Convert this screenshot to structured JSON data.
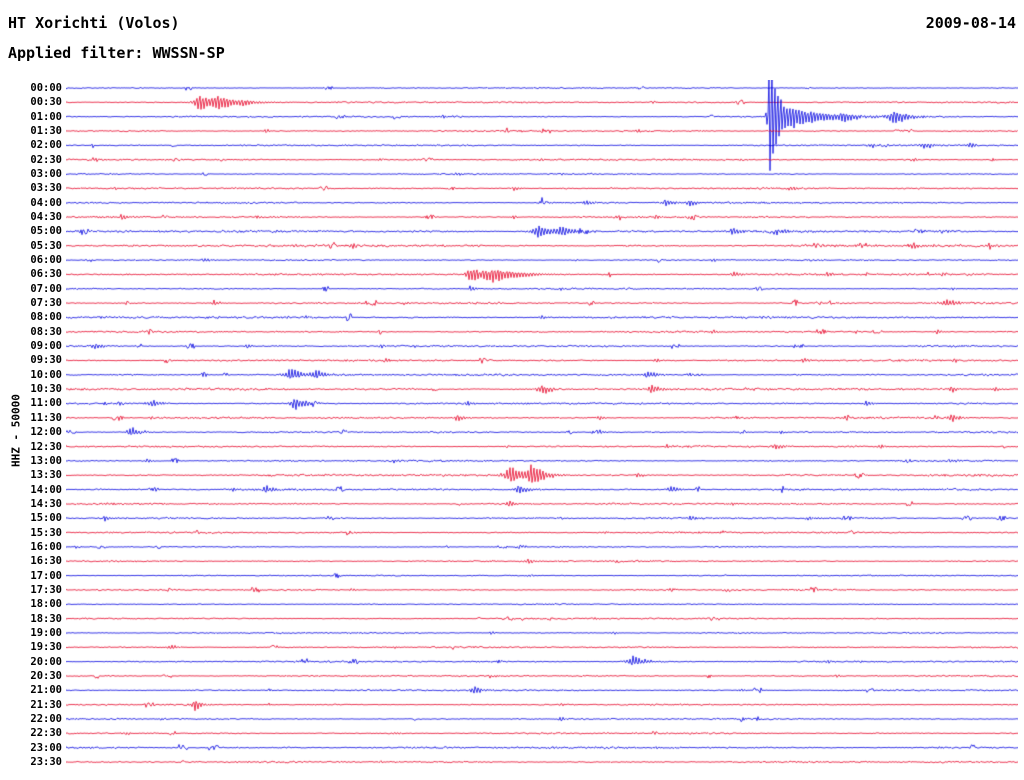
{
  "header": {
    "station": "HT Xorichti (Volos)",
    "date": "2009-08-14",
    "filter": "Applied filter: WWSSN-SP"
  },
  "y_axis_label": "HHZ - 50000",
  "palette": {
    "blue": "#0000e0",
    "red": "#e60026",
    "background": "#ffffff",
    "text": "#000000"
  },
  "chart_data": {
    "type": "line",
    "title": "Helicorder drum record, station HT Xorichti (Volos), channel HHZ, gain 50000, filter WWSSN-SP, 2009-08-14",
    "minutes_per_row": 30,
    "row_colors_alternate": [
      "blue",
      "red"
    ],
    "rows": [
      {
        "label": "00:00",
        "color": "blue",
        "noise": 0.55,
        "events": []
      },
      {
        "label": "00:30",
        "color": "red",
        "noise": 0.75,
        "events": [
          [
            0.14,
            11,
            4,
            16
          ],
          [
            0.158,
            6,
            2,
            26
          ],
          [
            0.185,
            3,
            2,
            6
          ]
        ]
      },
      {
        "label": "01:00",
        "color": "blue",
        "noise": 0.65,
        "events": [
          [
            0.395,
            3,
            1,
            4
          ],
          [
            0.7385,
            85,
            1,
            5
          ],
          [
            0.742,
            20,
            2,
            38
          ],
          [
            0.815,
            4,
            2,
            8
          ],
          [
            0.87,
            9,
            4,
            12
          ]
        ]
      },
      {
        "label": "01:30",
        "color": "red",
        "noise": 0.7,
        "events": [
          [
            0.21,
            2.5,
            2,
            4
          ],
          [
            0.6,
            2.5,
            2,
            4
          ],
          [
            0.74,
            2,
            2,
            4
          ]
        ]
      },
      {
        "label": "02:00",
        "color": "blue",
        "noise": 0.7,
        "events": [
          [
            0.845,
            3,
            2,
            6
          ],
          [
            0.9,
            4.5,
            3,
            9
          ],
          [
            0.95,
            3,
            2,
            5
          ]
        ]
      },
      {
        "label": "02:30",
        "color": "red",
        "noise": 0.8,
        "events": [
          [
            0.028,
            3.5,
            2,
            5
          ],
          [
            0.33,
            2.5,
            2,
            4
          ],
          [
            0.5,
            2,
            2,
            4
          ],
          [
            0.89,
            2.5,
            2,
            4
          ]
        ]
      },
      {
        "label": "03:00",
        "color": "blue",
        "noise": 0.6,
        "events": [
          [
            0.41,
            2.5,
            2,
            4
          ],
          [
            0.52,
            2,
            2,
            4
          ]
        ]
      },
      {
        "label": "03:30",
        "color": "red",
        "noise": 0.75,
        "events": [
          [
            0.47,
            3,
            2,
            5
          ],
          [
            0.76,
            3,
            2,
            5
          ]
        ]
      },
      {
        "label": "04:00",
        "color": "blue",
        "noise": 0.75,
        "events": [
          [
            0.5,
            3.5,
            2,
            6
          ],
          [
            0.545,
            4,
            2,
            8
          ],
          [
            0.63,
            4.5,
            3,
            9
          ],
          [
            0.655,
            4,
            2,
            7
          ]
        ]
      },
      {
        "label": "04:30",
        "color": "red",
        "noise": 0.75,
        "events": [
          [
            0.058,
            4,
            2,
            6
          ],
          [
            0.2,
            2.5,
            2,
            4
          ],
          [
            0.47,
            2.5,
            2,
            4
          ],
          [
            0.62,
            3,
            2,
            5
          ]
        ]
      },
      {
        "label": "05:00",
        "color": "blue",
        "noise": 1.05,
        "events": [
          [
            0.495,
            8,
            5,
            14
          ],
          [
            0.52,
            6,
            3,
            12
          ],
          [
            0.7,
            4.5,
            3,
            8
          ],
          [
            0.745,
            4,
            2,
            8
          ],
          [
            0.92,
            3,
            2,
            5
          ]
        ]
      },
      {
        "label": "05:30",
        "color": "red",
        "noise": 1.15,
        "events": [
          [
            0.3,
            3,
            2,
            5
          ],
          [
            0.89,
            4.5,
            3,
            8
          ],
          [
            0.97,
            3,
            2,
            5
          ]
        ]
      },
      {
        "label": "06:00",
        "color": "blue",
        "noise": 0.65,
        "events": [
          [
            0.145,
            3.5,
            2,
            5
          ],
          [
            0.68,
            2.5,
            2,
            4
          ]
        ]
      },
      {
        "label": "06:30",
        "color": "red",
        "noise": 0.8,
        "events": [
          [
            0.424,
            10,
            3,
            20
          ],
          [
            0.447,
            6,
            3,
            30
          ],
          [
            0.7,
            4,
            2,
            8
          ],
          [
            0.8,
            3.5,
            2,
            6
          ],
          [
            0.92,
            3,
            2,
            5
          ]
        ]
      },
      {
        "label": "07:00",
        "color": "blue",
        "noise": 0.65,
        "events": [
          [
            0.424,
            5,
            1,
            4
          ],
          [
            0.52,
            2.5,
            2,
            4
          ],
          [
            0.93,
            2.5,
            2,
            4
          ]
        ]
      },
      {
        "label": "07:30",
        "color": "red",
        "noise": 0.8,
        "events": [
          [
            0.155,
            3.5,
            2,
            6
          ],
          [
            0.355,
            2.5,
            2,
            4
          ],
          [
            0.925,
            5,
            4,
            10
          ]
        ]
      },
      {
        "label": "08:00",
        "color": "blue",
        "noise": 0.95,
        "events": [
          [
            0.25,
            2,
            2,
            4
          ],
          [
            0.5,
            3,
            2,
            6
          ]
        ]
      },
      {
        "label": "08:30",
        "color": "red",
        "noise": 0.8,
        "events": [
          [
            0.68,
            2.5,
            2,
            4
          ],
          [
            0.915,
            3,
            2,
            5
          ]
        ]
      },
      {
        "label": "09:00",
        "color": "blue",
        "noise": 0.8,
        "events": [
          [
            0.03,
            4.5,
            2,
            7
          ],
          [
            0.19,
            3,
            2,
            5
          ],
          [
            0.33,
            2.5,
            2,
            4
          ]
        ]
      },
      {
        "label": "09:30",
        "color": "red",
        "noise": 0.8,
        "events": [
          [
            0.335,
            3,
            2,
            5
          ],
          [
            0.62,
            3.5,
            2,
            6
          ],
          [
            0.775,
            3,
            2,
            5
          ]
        ]
      },
      {
        "label": "10:00",
        "color": "blue",
        "noise": 0.85,
        "events": [
          [
            0.235,
            9,
            4,
            11
          ],
          [
            0.262,
            5,
            2,
            10
          ],
          [
            0.61,
            5,
            3,
            8
          ],
          [
            0.655,
            3,
            2,
            5
          ]
        ]
      },
      {
        "label": "10:30",
        "color": "red",
        "noise": 1.05,
        "events": [
          [
            0.5,
            6,
            4,
            9
          ],
          [
            0.615,
            6,
            3,
            9
          ],
          [
            0.93,
            4,
            2,
            6
          ],
          [
            0.975,
            3,
            2,
            5
          ]
        ]
      },
      {
        "label": "11:00",
        "color": "blue",
        "noise": 0.85,
        "events": [
          [
            0.09,
            5,
            3,
            8
          ],
          [
            0.24,
            8,
            4,
            11
          ],
          [
            0.42,
            3,
            2,
            5
          ],
          [
            0.84,
            4,
            2,
            6
          ]
        ]
      },
      {
        "label": "11:30",
        "color": "red",
        "noise": 0.85,
        "events": [
          [
            0.09,
            3,
            2,
            5
          ],
          [
            0.41,
            5,
            2,
            7
          ],
          [
            0.56,
            3,
            2,
            5
          ],
          [
            0.93,
            5,
            2,
            6
          ]
        ]
      },
      {
        "label": "12:00",
        "color": "blue",
        "noise": 0.75,
        "events": [
          [
            0.068,
            6,
            3,
            9
          ],
          [
            0.56,
            3,
            2,
            5
          ],
          [
            0.75,
            2.5,
            2,
            4
          ]
        ]
      },
      {
        "label": "12:30",
        "color": "red",
        "noise": 0.85,
        "events": [
          [
            0.63,
            3,
            2,
            5
          ],
          [
            0.745,
            4,
            2,
            7
          ],
          [
            0.855,
            3,
            2,
            5
          ]
        ]
      },
      {
        "label": "13:00",
        "color": "blue",
        "noise": 0.75,
        "events": [
          [
            0.085,
            3,
            2,
            5
          ],
          [
            0.345,
            2.5,
            2,
            4
          ],
          [
            0.93,
            3,
            2,
            5
          ]
        ]
      },
      {
        "label": "13:30",
        "color": "red",
        "noise": 0.9,
        "events": [
          [
            0.468,
            13,
            5,
            9
          ],
          [
            0.488,
            14,
            3,
            13
          ],
          [
            0.6,
            3,
            2,
            5
          ]
        ]
      },
      {
        "label": "14:00",
        "color": "blue",
        "noise": 0.85,
        "events": [
          [
            0.175,
            3,
            2,
            5
          ],
          [
            0.21,
            5,
            3,
            8
          ],
          [
            0.475,
            6,
            3,
            9
          ],
          [
            0.635,
            5,
            2,
            7
          ]
        ]
      },
      {
        "label": "14:30",
        "color": "red",
        "noise": 0.85,
        "events": [
          [
            0.465,
            4,
            2,
            6
          ],
          [
            0.7,
            2.5,
            2,
            4
          ]
        ]
      },
      {
        "label": "15:00",
        "color": "blue",
        "noise": 0.75,
        "events": [
          [
            0.04,
            4.5,
            1,
            5
          ],
          [
            0.655,
            3,
            2,
            5
          ],
          [
            0.78,
            3,
            2,
            5
          ]
        ]
      },
      {
        "label": "15:30",
        "color": "red",
        "noise": 0.75,
        "events": [
          [
            0.3,
            2.5,
            2,
            4
          ],
          [
            0.565,
            2.5,
            2,
            4
          ]
        ]
      },
      {
        "label": "16:00",
        "color": "blue",
        "noise": 0.55,
        "events": []
      },
      {
        "label": "16:30",
        "color": "red",
        "noise": 0.7,
        "events": [
          [
            0.485,
            3.5,
            2,
            6
          ]
        ]
      },
      {
        "label": "17:00",
        "color": "blue",
        "noise": 0.55,
        "events": [
          [
            0.485,
            2.5,
            2,
            4
          ]
        ]
      },
      {
        "label": "17:30",
        "color": "red",
        "noise": 0.7,
        "events": [
          [
            0.3,
            2,
            2,
            4
          ]
        ]
      },
      {
        "label": "18:00",
        "color": "blue",
        "noise": 0.55,
        "events": []
      },
      {
        "label": "18:30",
        "color": "red",
        "noise": 0.7,
        "events": [
          [
            0.555,
            2,
            2,
            4
          ]
        ]
      },
      {
        "label": "19:00",
        "color": "blue",
        "noise": 0.6,
        "events": [
          [
            0.575,
            2,
            2,
            4
          ]
        ]
      },
      {
        "label": "19:30",
        "color": "red",
        "noise": 0.7,
        "events": [
          [
            0.11,
            4,
            2,
            5
          ],
          [
            0.345,
            2,
            2,
            4
          ]
        ]
      },
      {
        "label": "20:00",
        "color": "blue",
        "noise": 0.7,
        "events": [
          [
            0.595,
            7,
            4,
            11
          ],
          [
            0.8,
            2.5,
            2,
            4
          ]
        ]
      },
      {
        "label": "20:30",
        "color": "red",
        "noise": 0.7,
        "events": [
          [
            0.445,
            2,
            2,
            4
          ],
          [
            0.81,
            2,
            2,
            4
          ]
        ]
      },
      {
        "label": "21:00",
        "color": "blue",
        "noise": 0.7,
        "events": [
          [
            0.43,
            5,
            4,
            8
          ],
          [
            0.71,
            2.5,
            2,
            4
          ]
        ]
      },
      {
        "label": "21:30",
        "color": "red",
        "noise": 0.7,
        "events": [
          [
            0.135,
            8,
            2,
            6
          ],
          [
            0.52,
            2,
            2,
            4
          ]
        ]
      },
      {
        "label": "22:00",
        "color": "blue",
        "noise": 0.7,
        "events": [
          [
            0.1,
            2,
            2,
            4
          ],
          [
            0.52,
            3,
            2,
            5
          ]
        ]
      },
      {
        "label": "22:30",
        "color": "red",
        "noise": 0.7,
        "events": [
          [
            0.345,
            2,
            2,
            4
          ]
        ]
      },
      {
        "label": "23:00",
        "color": "blue",
        "noise": 0.9,
        "events": [
          [
            0.62,
            2.5,
            2,
            4
          ]
        ]
      },
      {
        "label": "23:30",
        "color": "red",
        "noise": 0.8,
        "events": [
          [
            0.33,
            2,
            2,
            4
          ]
        ]
      }
    ]
  }
}
